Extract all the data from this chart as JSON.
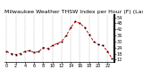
{
  "title": "Milwaukee Weather THSW Index per Hour (F) (Last 24 Hours)",
  "background_color": "#ffffff",
  "line_color": "#dd0000",
  "tick_color": "#000000",
  "grid_color": "#999999",
  "ylim": [
    10,
    56
  ],
  "ytick_values": [
    12,
    18,
    24,
    30,
    36,
    42,
    48,
    54
  ],
  "xlim": [
    -0.5,
    23.5
  ],
  "hours": [
    0,
    1,
    2,
    3,
    4,
    5,
    6,
    7,
    8,
    9,
    10,
    11,
    12,
    13,
    14,
    15,
    16,
    17,
    18,
    19,
    20,
    21,
    22,
    23
  ],
  "values": [
    20,
    18,
    17,
    18,
    20,
    21,
    19,
    20,
    24,
    23,
    26,
    28,
    30,
    36,
    44,
    50,
    48,
    44,
    37,
    30,
    27,
    26,
    20,
    13
  ],
  "title_fontsize": 4.5,
  "tick_fontsize": 3.5,
  "line_width": 0.7,
  "marker_size": 1.3
}
